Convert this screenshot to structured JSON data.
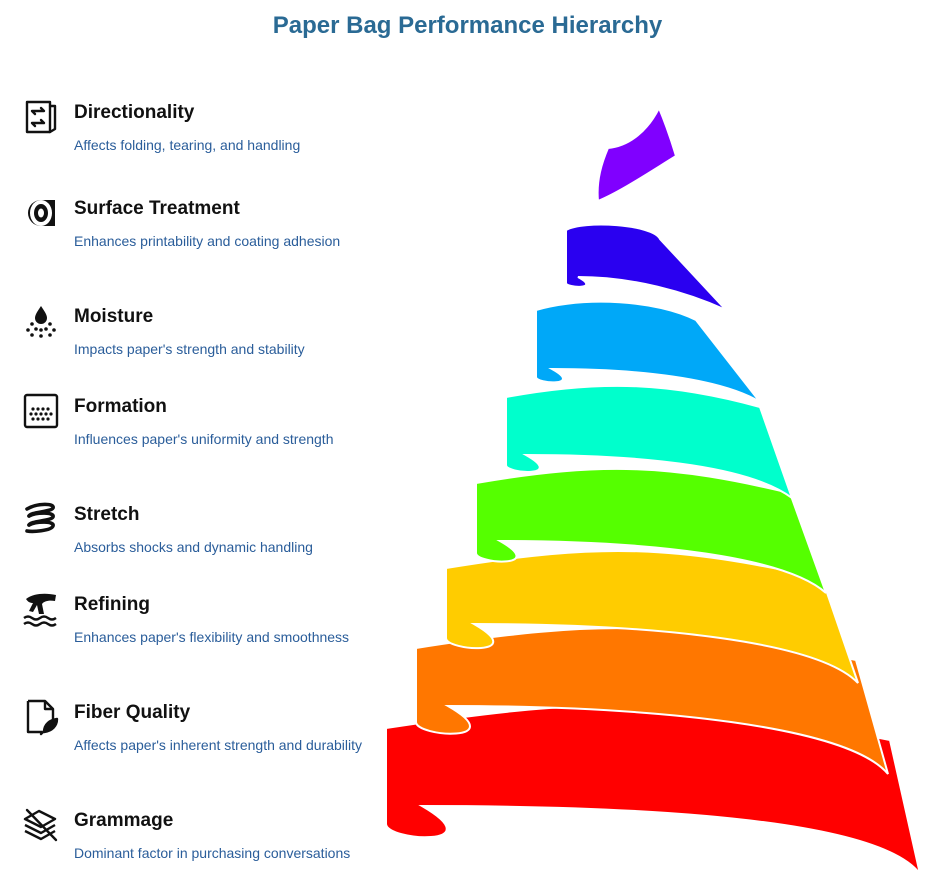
{
  "title": "Paper Bag Performance Hierarchy",
  "items": [
    {
      "title": "Directionality",
      "description": "Affects folding, tearing, and handling",
      "icon": "directionality-icon",
      "color": "#8000ff"
    },
    {
      "title": "Surface Treatment",
      "description": "Enhances printability and coating adhesion",
      "icon": "tape-roll-icon",
      "color": "#2a00f0"
    },
    {
      "title": "Moisture",
      "description": "Impacts paper's strength and stability",
      "icon": "droplet-spray-icon",
      "color": "#00a8f8"
    },
    {
      "title": "Formation",
      "description": "Influences paper's uniformity and strength",
      "icon": "dotted-square-icon",
      "color": "#00ffcc"
    },
    {
      "title": "Stretch",
      "description": "Absorbs shocks and dynamic handling",
      "icon": "spring-icon",
      "color": "#55ff00"
    },
    {
      "title": "Refining",
      "description": "Enhances paper's flexibility and smoothness",
      "icon": "fiber-water-icon",
      "color": "#ffcc00"
    },
    {
      "title": "Fiber Quality",
      "description": "Affects paper's inherent strength and durability",
      "icon": "document-leaf-icon",
      "color": "#ff7700"
    },
    {
      "title": "Grammage",
      "description": "Dominant factor in purchasing conversations",
      "icon": "stacked-sheets-icon",
      "color": "#ff0000"
    }
  ]
}
